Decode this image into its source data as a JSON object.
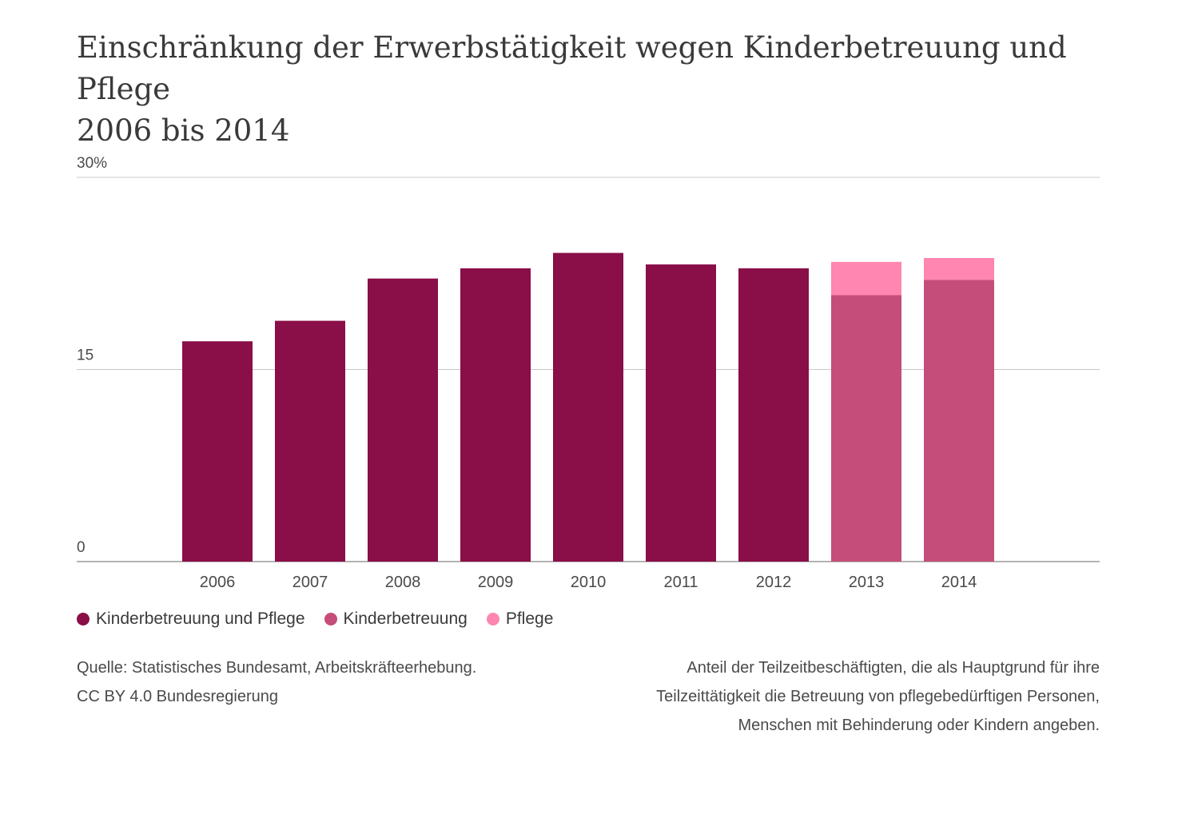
{
  "chart_data": {
    "type": "bar",
    "stacked": true,
    "title": "Einschränkung der Erwerbstätigkeit wegen Kinderbetreuung und Pflege",
    "subtitle": "2006 bis 2014",
    "xlabel": "",
    "ylabel": "",
    "ylim": [
      0,
      30
    ],
    "yticks": [
      {
        "value": 0,
        "label": "0"
      },
      {
        "value": 15,
        "label": "15"
      },
      {
        "value": 30,
        "label": "30%"
      }
    ],
    "grid": true,
    "legend_position": "bottom-left",
    "categories": [
      "2006",
      "2007",
      "2008",
      "2009",
      "2010",
      "2011",
      "2012",
      "2013",
      "2014"
    ],
    "series": [
      {
        "name": "Kinderbetreuung und Pflege",
        "color": "#8a0e48",
        "values": [
          17.2,
          18.8,
          22.1,
          22.9,
          24.1,
          23.2,
          22.9,
          null,
          null
        ]
      },
      {
        "name": "Kinderbetreuung",
        "color": "#c54d79",
        "values": [
          null,
          null,
          null,
          null,
          null,
          null,
          null,
          20.8,
          22.0
        ]
      },
      {
        "name": "Pflege",
        "color": "#fe86b0",
        "values": [
          null,
          null,
          null,
          null,
          null,
          null,
          null,
          2.6,
          1.7
        ]
      }
    ]
  },
  "source_lines": [
    "Quelle: Statistisches Bundesamt, Arbeitskräfteerhebung.",
    "CC BY 4.0 Bundesregierung"
  ],
  "note_lines": [
    "Anteil der Teilzeitbeschäftigten, die als Hauptgrund für ihre",
    "Teilzeittätigkeit die Betreuung von pflegebedürftigen Personen,",
    "Menschen mit Behinderung oder Kindern angeben."
  ]
}
